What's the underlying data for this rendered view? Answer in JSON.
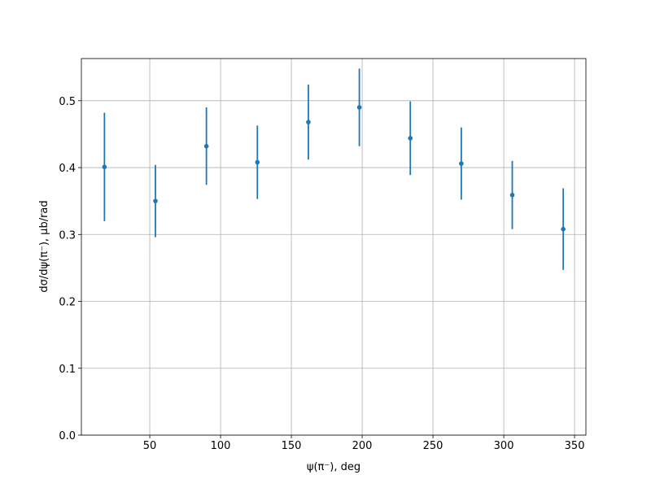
{
  "chart_data": {
    "type": "errorbar",
    "x_label": "ψ(π⁻), deg",
    "y_label": "dσ/dψ(π⁻), μb/rad",
    "x": [
      18,
      54,
      90,
      126,
      162,
      198,
      234,
      270,
      306,
      342
    ],
    "series": [
      {
        "color": "#1f77b4",
        "values": [
          0.401,
          0.35,
          0.432,
          0.408,
          0.468,
          0.49,
          0.444,
          0.406,
          0.359,
          0.308
        ],
        "errors": [
          0.081,
          0.054,
          0.058,
          0.055,
          0.056,
          0.058,
          0.055,
          0.054,
          0.051,
          0.061
        ]
      }
    ],
    "xlim": [
      1.7,
      358
    ],
    "ylim": [
      0,
      0.563
    ],
    "xticks": [
      50,
      100,
      150,
      200,
      250,
      300,
      350
    ],
    "yticks": [
      {
        "value": 0,
        "label": "0.0"
      },
      0.1,
      0.2,
      0.3,
      0.4,
      0.5
    ],
    "grid": true
  }
}
